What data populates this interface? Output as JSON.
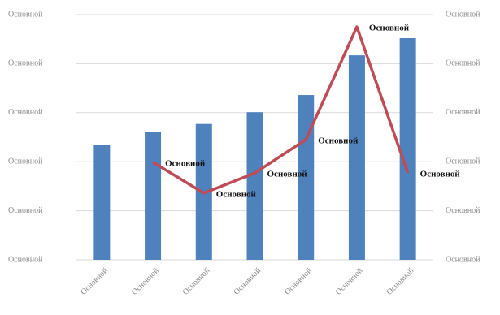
{
  "chart_data": {
    "type": "bar-line",
    "categories": [
      "Основной",
      "Основной",
      "Основной",
      "Основной",
      "Основной",
      "Основной",
      "Основной"
    ],
    "series": [
      {
        "type": "bar",
        "color": "#4f81bd",
        "values": [
          2.35,
          2.6,
          2.77,
          3.01,
          3.36,
          4.17,
          4.52
        ]
      },
      {
        "type": "line",
        "axis": "y2",
        "color": "#be4b55",
        "values": [
          null,
          1.99,
          1.36,
          1.77,
          2.45,
          4.75,
          1.77
        ],
        "value_labels": [
          null,
          "Основной",
          "Основной",
          "Основной",
          "Основной",
          "Основной",
          "Основной"
        ]
      }
    ],
    "ylim": [
      0,
      5
    ],
    "yticks": [
      {
        "value": 0,
        "label": "Основной"
      },
      {
        "value": 1,
        "label": "Основной"
      },
      {
        "value": 2,
        "label": "Основной"
      },
      {
        "value": 3,
        "label": "Основной"
      },
      {
        "value": 4,
        "label": "Основной"
      },
      {
        "value": 5,
        "label": "Основной"
      }
    ],
    "y2lim": [
      0,
      5
    ],
    "y2ticks": [
      {
        "value": 0,
        "label": "Основной"
      },
      {
        "value": 1,
        "label": "Основной"
      },
      {
        "value": 2,
        "label": "Основной"
      },
      {
        "value": 3,
        "label": "Основной"
      },
      {
        "value": 4,
        "label": "Основной"
      },
      {
        "value": 5,
        "label": "Основной"
      }
    ],
    "grid": true
  }
}
